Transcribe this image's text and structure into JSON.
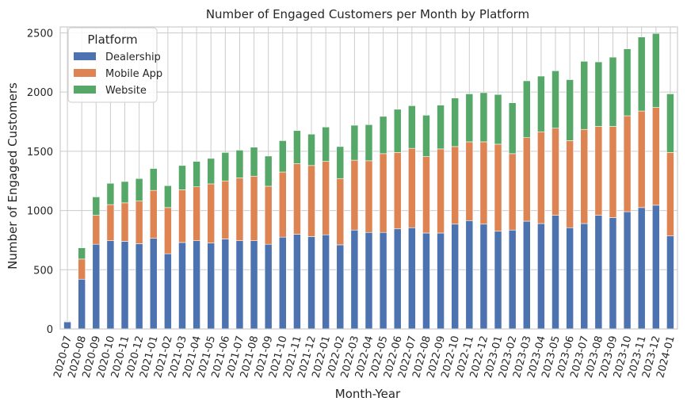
{
  "chart_data": {
    "type": "bar",
    "stacked": true,
    "title": "Number of Engaged Customers per Month by Platform",
    "xlabel": "Month-Year",
    "ylabel": "Number of Engaged Customers",
    "ylim": [
      0,
      2550
    ],
    "yticks": [
      0,
      500,
      1000,
      1500,
      2000,
      2500
    ],
    "grid": true,
    "legend": {
      "title": "Platform",
      "placement": "top-left"
    },
    "categories": [
      "2020-07",
      "2020-08",
      "2020-09",
      "2020-10",
      "2020-11",
      "2020-12",
      "2021-01",
      "2021-02",
      "2021-03",
      "2021-04",
      "2021-05",
      "2021-06",
      "2021-07",
      "2021-08",
      "2021-09",
      "2021-10",
      "2021-11",
      "2021-12",
      "2022-01",
      "2022-02",
      "2022-03",
      "2022-04",
      "2022-05",
      "2022-06",
      "2022-07",
      "2022-08",
      "2022-09",
      "2022-10",
      "2022-11",
      "2022-12",
      "2023-01",
      "2023-02",
      "2023-03",
      "2023-04",
      "2023-05",
      "2023-06",
      "2023-07",
      "2023-08",
      "2023-09",
      "2023-10",
      "2023-11",
      "2023-12",
      "2024-01"
    ],
    "series": [
      {
        "name": "Dealership",
        "color": "#4c72b0",
        "values": [
          60,
          420,
          715,
          745,
          740,
          720,
          765,
          635,
          730,
          745,
          725,
          760,
          745,
          745,
          715,
          775,
          800,
          780,
          795,
          710,
          835,
          815,
          815,
          845,
          855,
          810,
          810,
          885,
          915,
          885,
          825,
          835,
          910,
          890,
          960,
          855,
          890,
          960,
          940,
          990,
          1025,
          1045,
          785
        ]
      },
      {
        "name": "Mobile App",
        "color": "#dd8452",
        "values": [
          5,
          170,
          245,
          305,
          325,
          360,
          405,
          390,
          445,
          455,
          500,
          490,
          530,
          545,
          490,
          550,
          595,
          600,
          620,
          560,
          590,
          605,
          665,
          645,
          670,
          645,
          710,
          655,
          665,
          695,
          735,
          645,
          705,
          775,
          735,
          735,
          795,
          750,
          770,
          810,
          815,
          825,
          705
        ]
      },
      {
        "name": "Website",
        "color": "#55a868",
        "values": [
          5,
          95,
          155,
          180,
          180,
          190,
          185,
          185,
          205,
          215,
          215,
          240,
          235,
          245,
          255,
          265,
          280,
          265,
          290,
          270,
          295,
          305,
          315,
          365,
          360,
          350,
          370,
          410,
          405,
          415,
          420,
          430,
          480,
          470,
          485,
          515,
          575,
          545,
          585,
          565,
          625,
          625,
          495
        ]
      }
    ]
  }
}
